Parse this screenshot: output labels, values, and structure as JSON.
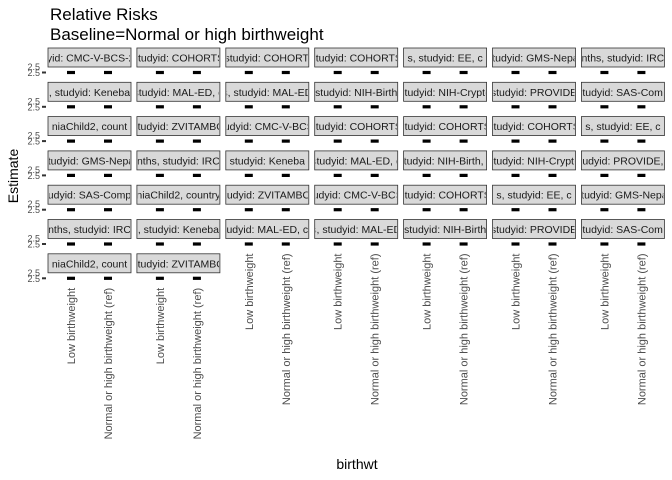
{
  "chart_data": {
    "type": "scatter",
    "title": "Relative Risks",
    "subtitle": "Baseline=Normal or high birthweight",
    "xlabel": "birthwt",
    "ylabel": "Estimate",
    "categories": [
      "Low birthweight",
      "Normal or high birthweight (ref)"
    ],
    "y_tick_labels": [
      "2.5",
      "2.5"
    ],
    "layout": {
      "rows": 7,
      "cols": 7,
      "facet_count": 44
    },
    "facets": [
      "studyid: CMC-V-BCS-2002",
      "studyid: COHORTS",
      ", studyid: COHORTS",
      "studyid: COHORTS",
      "s, studyid: EE, c",
      "studyid: GMS-Nepal",
      "nths, studyid: IRC",
      ", studyid: Keneba",
      "studyid: MAL-ED, c",
      "s, studyid: MAL-ED",
      "studyid: NIH-Birth",
      "studyid: NIH-Crypto",
      "studyid: PROVIDE",
      "studyid: SAS-Comp",
      "niaChild2, count",
      "studyid: ZVITAMBO",
      "tudyid: CMC-V-BCS",
      "studyid: COHORTS",
      "studyid: COHORTS",
      "studyid: COHORTS",
      "s, studyid: EE, c",
      "studyid: GMS-Nepal",
      "nths, studyid: IRC",
      "studyid: Keneba",
      "studyid: MAL-ED, c",
      "studyid: NIH-Birth, c",
      "studyid: NIH-Crypto",
      "studyid: PROVIDE, c",
      "udyid: SAS-Comp",
      "niaChild2, country",
      "tudyid: ZVITAMBO",
      "tudyid: CMC-V-BCS",
      "studyid: COHORTS",
      "s, studyid: EE, c",
      "studyid: GMS-Nepal",
      "nths, studyid: IRC",
      ", studyid: Keneba",
      "udyid: MAL-ED, c",
      "s, studyid: MAL-ED",
      "studyid: NIH-Birth",
      "studyid: PROVIDE",
      "studyid: SAS-Comp",
      "niaChild2, count",
      "studyid: ZVITAMBO"
    ],
    "estimates": [
      [
        2.5,
        2.5
      ],
      [
        2.5,
        2.5
      ],
      [
        2.5,
        2.5
      ],
      [
        2.5,
        2.5
      ],
      [
        2.5,
        2.5
      ],
      [
        2.5,
        2.5
      ],
      [
        2.5,
        2.5
      ],
      [
        2.5,
        2.5
      ],
      [
        2.5,
        2.5
      ],
      [
        2.5,
        2.5
      ],
      [
        2.5,
        2.5
      ],
      [
        2.5,
        2.5
      ],
      [
        2.5,
        2.5
      ],
      [
        2.5,
        2.5
      ],
      [
        2.5,
        2.5
      ],
      [
        2.5,
        2.5
      ],
      [
        2.5,
        2.5
      ],
      [
        2.5,
        2.5
      ],
      [
        2.5,
        2.5
      ],
      [
        2.5,
        2.5
      ],
      [
        2.5,
        2.5
      ],
      [
        2.5,
        2.5
      ],
      [
        2.5,
        2.5
      ],
      [
        2.5,
        2.5
      ],
      [
        2.5,
        2.5
      ],
      [
        2.5,
        2.5
      ],
      [
        2.5,
        2.5
      ],
      [
        2.5,
        2.5
      ],
      [
        2.5,
        2.5
      ],
      [
        2.5,
        2.5
      ],
      [
        2.5,
        2.5
      ],
      [
        2.5,
        2.5
      ],
      [
        2.5,
        2.5
      ],
      [
        2.5,
        2.5
      ],
      [
        2.5,
        2.5
      ],
      [
        2.5,
        2.5
      ],
      [
        2.5,
        2.5
      ],
      [
        2.5,
        2.5
      ],
      [
        2.5,
        2.5
      ],
      [
        2.5,
        2.5
      ],
      [
        2.5,
        2.5
      ],
      [
        2.5,
        2.5
      ],
      [
        2.5,
        2.5
      ],
      [
        2.5,
        2.5
      ]
    ],
    "colors": {
      "strip_fill": "#d9d9d9",
      "strip_border": "#333333",
      "mark": "#000000",
      "tick_text": "#4d4d4d"
    },
    "grid": false
  }
}
